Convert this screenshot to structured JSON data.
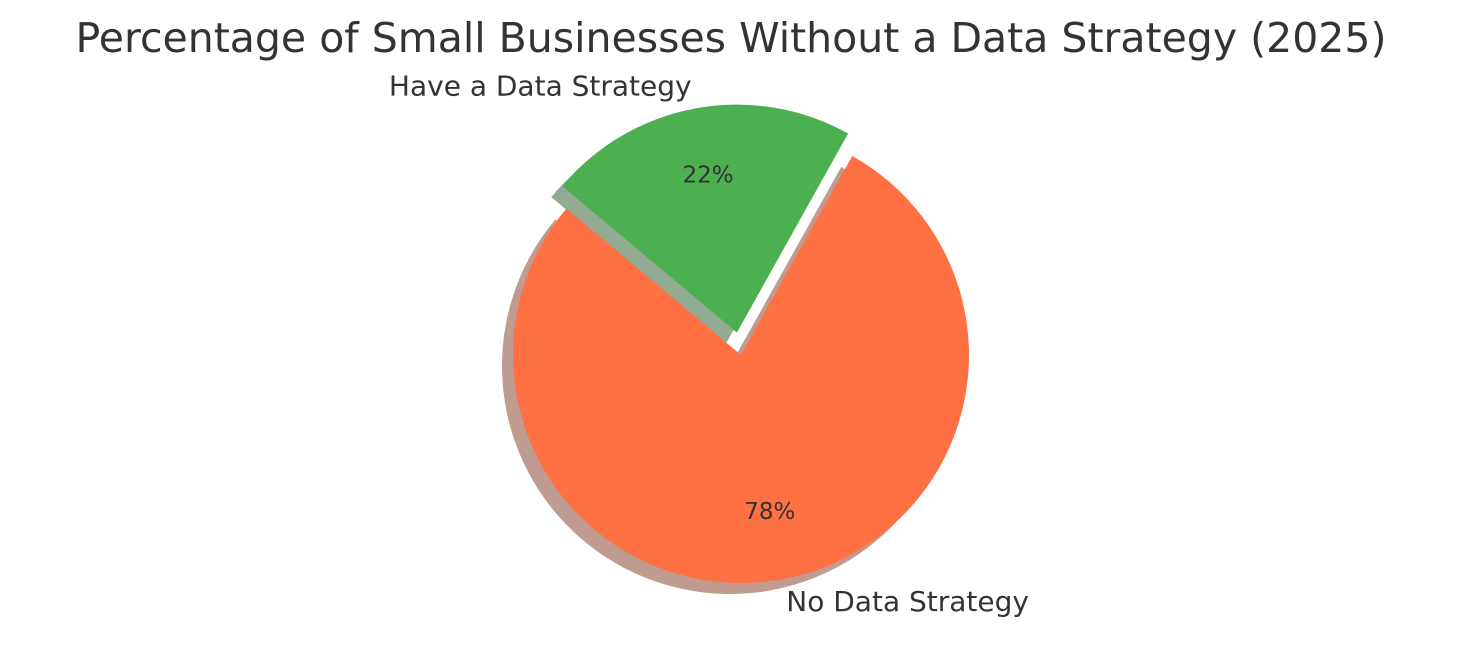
{
  "chart_data": {
    "type": "pie",
    "title": "Percentage of Small Businesses Without a Data Strategy (2025)",
    "slices": [
      {
        "label": "No Data Strategy",
        "value": 78,
        "display": "78%",
        "color": "#FF7043",
        "exploded": false
      },
      {
        "label": "Have a Data Strategy",
        "value": 22,
        "display": "22%",
        "color": "#4CAF50",
        "exploded": true
      }
    ],
    "shadow": true,
    "legend": "none"
  }
}
